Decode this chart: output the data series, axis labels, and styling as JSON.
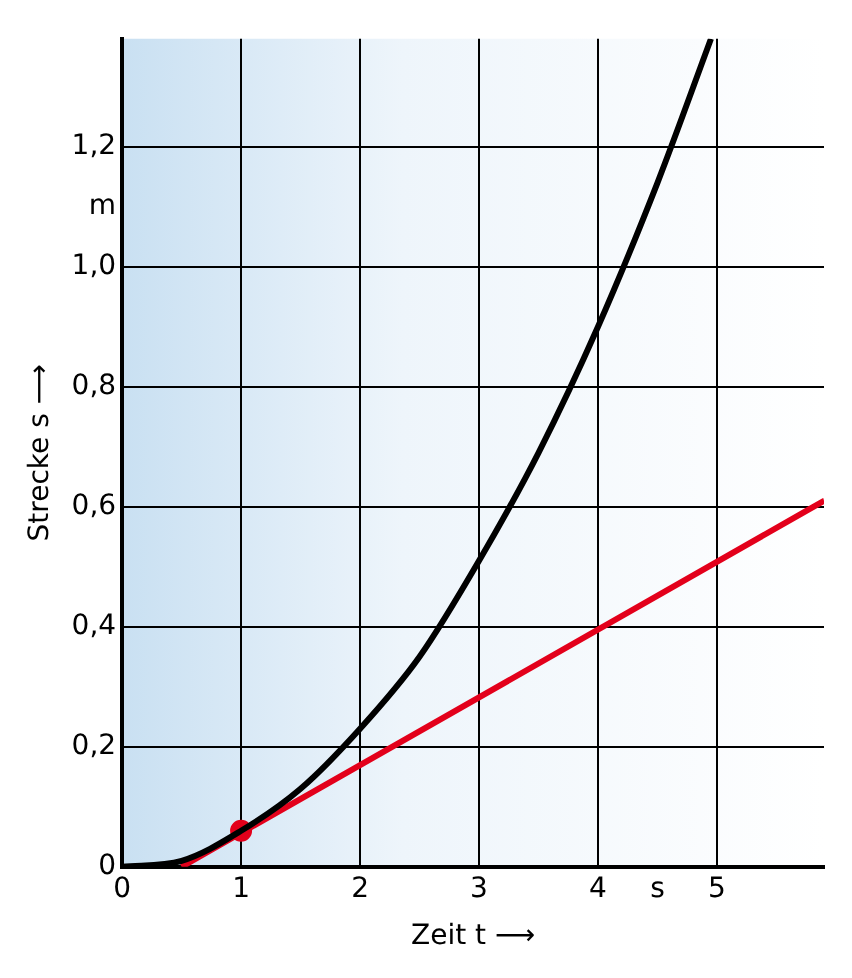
{
  "chart_data": {
    "type": "line",
    "xlabel": "Zeit t ⟶",
    "ylabel": "Strecke s ⟶",
    "xlim": [
      0,
      5.9
    ],
    "ylim": [
      0,
      1.38
    ],
    "xticks": [
      0,
      1,
      2,
      3,
      4,
      {
        "value": 4.5,
        "label": "s"
      },
      5
    ],
    "yticks": [
      0,
      {
        "value": 0.2,
        "label": "0,2"
      },
      {
        "value": 0.4,
        "label": "0,4"
      },
      {
        "value": 0.6,
        "label": "0,6"
      },
      {
        "value": 0.8,
        "label": "0,8"
      },
      {
        "value": 1.0,
        "label": "1,0"
      },
      {
        "value": 1.1,
        "label": "m"
      },
      {
        "value": 1.2,
        "label": "1,2"
      }
    ],
    "grid": true,
    "legend": false,
    "marker": "none",
    "line_style": "solid",
    "series": [
      {
        "color": "#000000",
        "x": [
          0,
          0.5,
          1,
          1.5,
          2,
          2.5,
          3,
          3.5,
          4,
          4.5,
          4.95
        ],
        "values": [
          0,
          0.01,
          0.06,
          0.13,
          0.23,
          0.35,
          0.51,
          0.69,
          0.9,
          1.14,
          1.38
        ]
      },
      {
        "color": "#e3001b",
        "x": [
          0.5,
          5.9
        ],
        "values": [
          0,
          0.61
        ]
      },
      {
        "type": "scatter",
        "marker": "circle",
        "color": "#e3001b",
        "x": [
          1
        ],
        "values": [
          0.06
        ]
      }
    ]
  }
}
